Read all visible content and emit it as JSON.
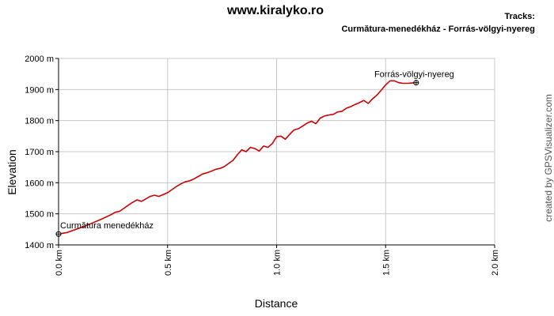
{
  "header": {
    "site_title": "www.kiralyko.ro",
    "tracks_label": "Tracks:",
    "track_name": "Curmătura-menedékház  - Forrás-völgyi-nyereg"
  },
  "credit": "created by GPSVisualizer.com",
  "colors": {
    "track": "#cc0000",
    "grid": "#c8c8c8",
    "axis": "#000000"
  },
  "chart_data": {
    "type": "line",
    "xlabel": "Distance",
    "ylabel": "Elevation",
    "xlim": [
      0,
      2.0
    ],
    "ylim": [
      1400,
      2000
    ],
    "x_ticks": [
      0,
      0.5,
      1.0,
      1.5,
      2.0
    ],
    "x_tick_labels": [
      "0.0 km",
      "0.5 km",
      "1.0 km",
      "1.5 km",
      "2.0 km"
    ],
    "y_ticks": [
      1400,
      1500,
      1600,
      1700,
      1800,
      1900,
      2000
    ],
    "y_tick_labels": [
      "1400 m",
      "1500 m",
      "1600 m",
      "1700 m",
      "1800 m",
      "1900 m",
      "2000 m"
    ],
    "grid": true,
    "legend": "none",
    "series": [
      {
        "name": "Curmătura-menedékház  - Forrás-völgyi-nyereg",
        "x": [
          0,
          0.04,
          0.08,
          0.12,
          0.16,
          0.2,
          0.24,
          0.26,
          0.28,
          0.3,
          0.32,
          0.34,
          0.36,
          0.38,
          0.4,
          0.42,
          0.44,
          0.46,
          0.48,
          0.5,
          0.52,
          0.54,
          0.56,
          0.58,
          0.6,
          0.62,
          0.64,
          0.66,
          0.68,
          0.7,
          0.72,
          0.74,
          0.76,
          0.78,
          0.8,
          0.82,
          0.84,
          0.86,
          0.88,
          0.9,
          0.92,
          0.94,
          0.96,
          0.98,
          1.0,
          1.02,
          1.04,
          1.06,
          1.08,
          1.1,
          1.12,
          1.14,
          1.16,
          1.18,
          1.2,
          1.22,
          1.24,
          1.26,
          1.28,
          1.3,
          1.32,
          1.34,
          1.36,
          1.38,
          1.4,
          1.42,
          1.44,
          1.46,
          1.48,
          1.5,
          1.52,
          1.54,
          1.56,
          1.58,
          1.6,
          1.62,
          1.64
        ],
        "y": [
          1435,
          1440,
          1450,
          1460,
          1472,
          1484,
          1497,
          1505,
          1508,
          1518,
          1528,
          1537,
          1545,
          1540,
          1548,
          1556,
          1560,
          1556,
          1562,
          1568,
          1578,
          1588,
          1596,
          1603,
          1606,
          1612,
          1620,
          1628,
          1632,
          1637,
          1643,
          1646,
          1652,
          1662,
          1672,
          1690,
          1706,
          1700,
          1714,
          1710,
          1702,
          1718,
          1714,
          1726,
          1748,
          1750,
          1740,
          1756,
          1770,
          1774,
          1783,
          1792,
          1798,
          1790,
          1808,
          1815,
          1818,
          1820,
          1828,
          1830,
          1840,
          1845,
          1852,
          1858,
          1865,
          1855,
          1870,
          1882,
          1898,
          1915,
          1928,
          1928,
          1922,
          1920,
          1920,
          1921,
          1922
        ]
      }
    ],
    "waypoints": [
      {
        "label": "Curmătura menedékház",
        "x": 0.0,
        "y": 1435
      },
      {
        "label": "Forrás-völgyi-nyereg",
        "x": 1.64,
        "y": 1922
      }
    ]
  }
}
